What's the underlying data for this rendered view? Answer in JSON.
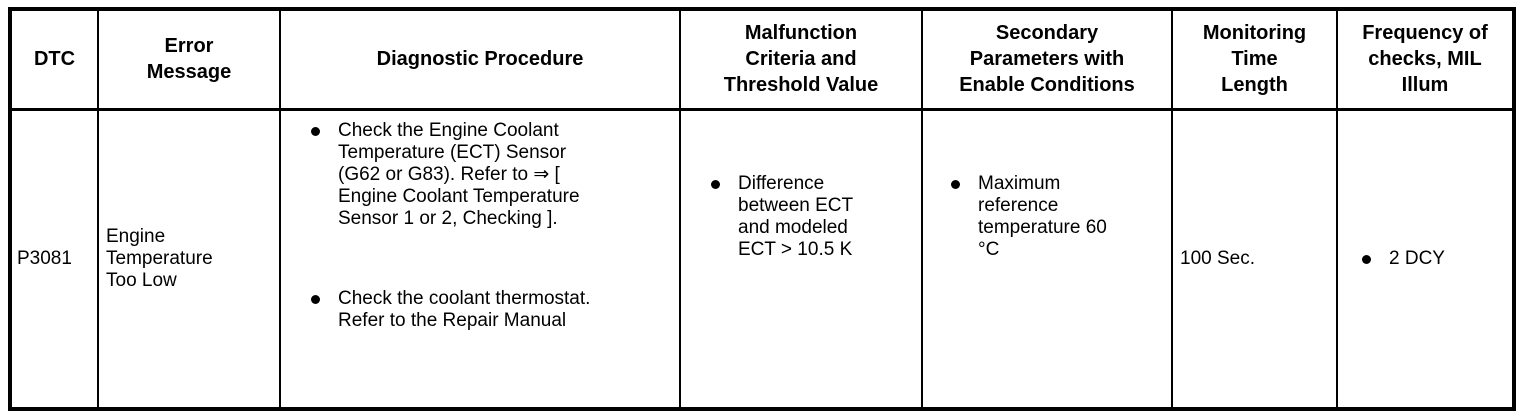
{
  "colors": {
    "background": "#ffffff",
    "border": "#000000",
    "text": "#000000"
  },
  "table": {
    "headers": [
      {
        "label": "DTC"
      },
      {
        "label": "Error\nMessage"
      },
      {
        "label": "Diagnostic Procedure"
      },
      {
        "label": "Malfunction\nCriteria and\nThreshold Value"
      },
      {
        "label": "Secondary\nParameters with\nEnable Conditions"
      },
      {
        "label": "Monitoring\nTime\nLength"
      },
      {
        "label": "Frequency of\nchecks, MIL\nIllum"
      }
    ],
    "row": {
      "dtc": "P3081",
      "error_message": "Engine\nTemperature\nToo Low",
      "diagnostic_procedure": [
        "Check the Engine Coolant\nTemperature (ECT) Sensor\n(G62 or G83). Refer to ⇒ [\nEngine Coolant Temperature\nSensor 1 or 2, Checking ].",
        "Check the coolant thermostat.\nRefer to the Repair Manual"
      ],
      "malfunction_criteria": [
        "Difference\nbetween ECT\nand modeled\nECT > 10.5 K"
      ],
      "secondary_parameters": [
        "Maximum\nreference\ntemperature 60\n°C"
      ],
      "monitoring_time": "100 Sec.",
      "frequency_of_checks": [
        "2 DCY"
      ]
    }
  }
}
